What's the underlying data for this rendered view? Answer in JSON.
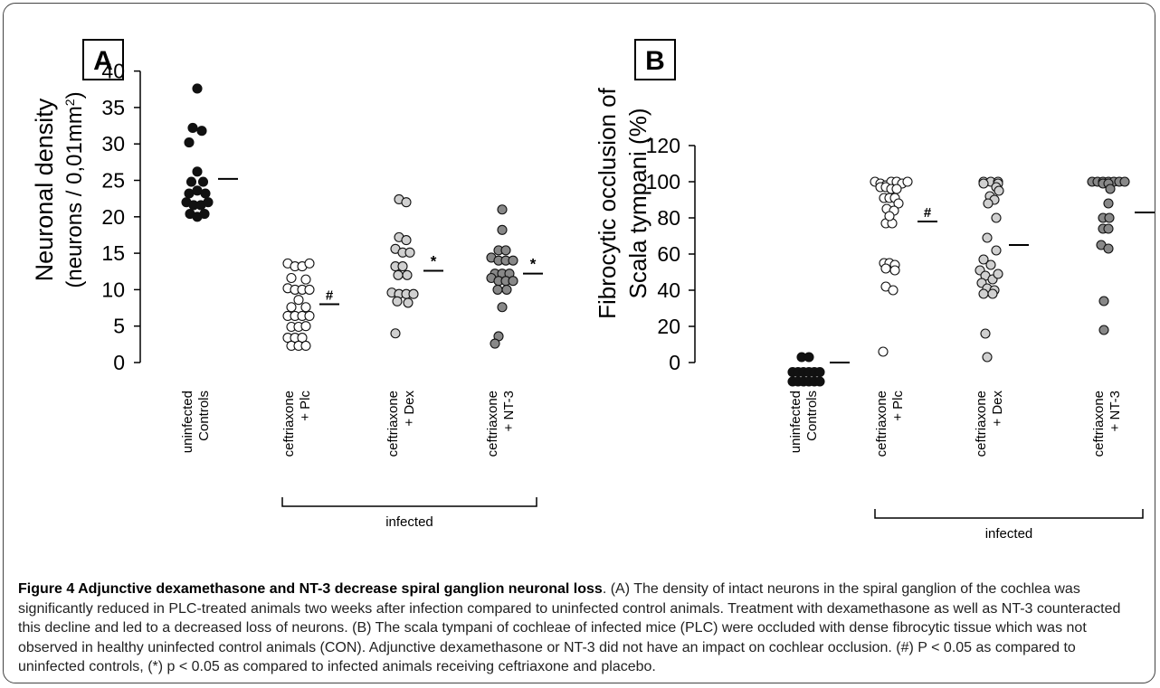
{
  "chart_data": [
    {
      "type": "scatter",
      "panel_label": "A",
      "ylabel_line1": "Neuronal density",
      "ylabel_line2_prefix": "(neurons / 0,01mm",
      "ylabel_line2_sup": "2",
      "ylabel_line2_suffix": ")",
      "ylim": [
        0,
        40
      ],
      "yticks": [
        0,
        5,
        10,
        15,
        20,
        25,
        30,
        35,
        40
      ],
      "categories": [
        {
          "line1": "uninfected",
          "line2": "Controls"
        },
        {
          "line1": "ceftriaxone",
          "line2": "+ Plc"
        },
        {
          "line1": "ceftriaxone",
          "line2": "+ Dex"
        },
        {
          "line1": "ceftriaxone",
          "line2": "+ NT-3"
        }
      ],
      "group_label": "infected",
      "group_span": [
        1,
        3
      ],
      "series": [
        {
          "category": 0,
          "fill": "#111111",
          "mean": 25.2,
          "mark": "",
          "points": [
            [
              0,
              37.6
            ],
            [
              -1,
              32.2
            ],
            [
              1,
              31.8
            ],
            [
              -1.8,
              30.2
            ],
            [
              0,
              26.2
            ],
            [
              -1.3,
              24.8
            ],
            [
              1.3,
              24.8
            ],
            [
              -1.8,
              23.2
            ],
            [
              0,
              23.6
            ],
            [
              1.8,
              23.2
            ],
            [
              -2.4,
              22
            ],
            [
              -0.8,
              21.6
            ],
            [
              0.8,
              21.6
            ],
            [
              2.4,
              22
            ],
            [
              -1.6,
              20.4
            ],
            [
              0,
              20
            ],
            [
              1.6,
              20.4
            ]
          ]
        },
        {
          "category": 1,
          "fill": "#ffffff",
          "mean": 8,
          "mark": "#",
          "points": [
            [
              -2.4,
              13.6
            ],
            [
              -0.8,
              13.2
            ],
            [
              0.8,
              13.2
            ],
            [
              2.4,
              13.6
            ],
            [
              -1.6,
              11.6
            ],
            [
              1.6,
              11.4
            ],
            [
              -2.4,
              10.2
            ],
            [
              -0.8,
              10
            ],
            [
              0.8,
              10
            ],
            [
              2.4,
              10
            ],
            [
              0,
              8.6
            ],
            [
              -1.6,
              7.6
            ],
            [
              1.6,
              7.6
            ],
            [
              -2.4,
              6.4
            ],
            [
              -0.8,
              6.4
            ],
            [
              0.8,
              6.4
            ],
            [
              2.4,
              6.4
            ],
            [
              -1.6,
              4.9
            ],
            [
              0,
              4.9
            ],
            [
              1.6,
              5
            ],
            [
              -2.4,
              3.4
            ],
            [
              -0.8,
              3.4
            ],
            [
              0.8,
              3.4
            ],
            [
              -1.6,
              2.3
            ],
            [
              0,
              2.3
            ],
            [
              1.6,
              2.3
            ]
          ]
        },
        {
          "category": 2,
          "fill": "#d0d0d0",
          "mean": 12.6,
          "mark": "*",
          "points": [
            [
              -0.8,
              22.4
            ],
            [
              0.8,
              22
            ],
            [
              -0.8,
              17.2
            ],
            [
              0.8,
              16.8
            ],
            [
              -1.6,
              15.6
            ],
            [
              0,
              15.1
            ],
            [
              1.6,
              15.1
            ],
            [
              -1.6,
              13.2
            ],
            [
              0,
              13.2
            ],
            [
              -1,
              12
            ],
            [
              1,
              12
            ],
            [
              -2.4,
              9.6
            ],
            [
              -0.8,
              9.4
            ],
            [
              0.8,
              9.4
            ],
            [
              2.4,
              9.4
            ],
            [
              -1.2,
              8.4
            ],
            [
              1.2,
              8.2
            ],
            [
              -1.6,
              4
            ]
          ]
        },
        {
          "category": 3,
          "fill": "#888888",
          "mean": 12.2,
          "mark": "*",
          "points": [
            [
              0,
              21
            ],
            [
              0,
              18.2
            ],
            [
              -0.8,
              15.4
            ],
            [
              0.8,
              15.4
            ],
            [
              -2.4,
              14.4
            ],
            [
              -0.8,
              14
            ],
            [
              0.8,
              14
            ],
            [
              2.4,
              14
            ],
            [
              -1.6,
              12.2
            ],
            [
              0,
              12.2
            ],
            [
              1.6,
              12.2
            ],
            [
              -2.4,
              11.6
            ],
            [
              -0.8,
              11.2
            ],
            [
              0.8,
              11.2
            ],
            [
              2.4,
              11.2
            ],
            [
              -1,
              10
            ],
            [
              1,
              10
            ],
            [
              0,
              7.6
            ],
            [
              -0.8,
              3.6
            ],
            [
              -1.6,
              2.6
            ]
          ]
        }
      ]
    },
    {
      "type": "scatter",
      "panel_label": "B",
      "ylabel_line1": "Fibrocytic occlusion of",
      "ylabel_line2": "Scala tympani (%)",
      "ylim": [
        -14,
        120
      ],
      "yticks": [
        0,
        20,
        40,
        60,
        80,
        100,
        120
      ],
      "categories": [
        {
          "line1": "uninfected",
          "line2": "Controls"
        },
        {
          "line1": "ceftriaxone",
          "line2": "+ Plc"
        },
        {
          "line1": "ceftriaxone",
          "line2": "+ Dex"
        },
        {
          "line1": "ceftriaxone",
          "line2": "+ NT-3"
        }
      ],
      "group_label": "infected",
      "group_span": [
        1,
        3
      ],
      "series": [
        {
          "category": 0,
          "fill": "#111111",
          "mean": 0,
          "mark": "",
          "points": [
            [
              -0.8,
              3
            ],
            [
              0.8,
              3
            ],
            [
              -2.8,
              -5.3
            ],
            [
              -1.6,
              -5.3
            ],
            [
              -0.4,
              -5.3
            ],
            [
              0.8,
              -5.3
            ],
            [
              2,
              -5.3
            ],
            [
              3.2,
              -5.3
            ],
            [
              -2.8,
              -10.5
            ],
            [
              -1.6,
              -10.5
            ],
            [
              -0.4,
              -10.5
            ],
            [
              0.8,
              -10.5
            ],
            [
              2,
              -10.5
            ],
            [
              3.2,
              -10.5
            ]
          ]
        },
        {
          "category": 1,
          "fill": "#ffffff",
          "mean": 78,
          "mark": "#",
          "points": [
            [
              -3.6,
              100
            ],
            [
              -2.4,
              99
            ],
            [
              -1.2,
              98
            ],
            [
              0,
              100
            ],
            [
              1.2,
              100
            ],
            [
              2.4,
              99
            ],
            [
              3.6,
              100
            ],
            [
              -2.4,
              97
            ],
            [
              -1.2,
              97
            ],
            [
              0,
              96
            ],
            [
              1.2,
              96
            ],
            [
              -1.6,
              91
            ],
            [
              -0.4,
              91
            ],
            [
              0.8,
              91
            ],
            [
              1.6,
              88
            ],
            [
              -1,
              85
            ],
            [
              0.6,
              84
            ],
            [
              -1.2,
              77
            ],
            [
              0.2,
              77
            ],
            [
              -0.4,
              81
            ],
            [
              -1.6,
              55
            ],
            [
              -0.4,
              55
            ],
            [
              0.8,
              54
            ],
            [
              -1.2,
              52
            ],
            [
              0.8,
              51
            ],
            [
              -1.2,
              42
            ],
            [
              0.4,
              40
            ],
            [
              -1.8,
              6
            ]
          ]
        },
        {
          "category": 2,
          "fill": "#d0d0d0",
          "mean": 65,
          "mark": "",
          "points": [
            [
              -1.6,
              100
            ],
            [
              0,
              100
            ],
            [
              1.6,
              100
            ],
            [
              -1.6,
              99
            ],
            [
              1.6,
              99
            ],
            [
              1.2,
              97
            ],
            [
              1.8,
              95
            ],
            [
              -0.2,
              92
            ],
            [
              0.8,
              90
            ],
            [
              -0.6,
              88
            ],
            [
              1.2,
              80
            ],
            [
              -0.8,
              69
            ],
            [
              1.2,
              62
            ],
            [
              -1.6,
              57
            ],
            [
              0,
              54
            ],
            [
              -2.4,
              51
            ],
            [
              -1.2,
              48
            ],
            [
              0.4,
              46
            ],
            [
              1.6,
              49
            ],
            [
              -2,
              44
            ],
            [
              -0.8,
              41
            ],
            [
              0.8,
              40
            ],
            [
              -1.6,
              38
            ],
            [
              0.4,
              38
            ],
            [
              -1.2,
              16
            ],
            [
              -0.8,
              3
            ]
          ]
        },
        {
          "category": 3,
          "fill": "#888888",
          "mean": 83,
          "mark": "",
          "points": [
            [
              -3.6,
              100
            ],
            [
              -2.4,
              100
            ],
            [
              -1.2,
              100
            ],
            [
              0,
              100
            ],
            [
              1.2,
              100
            ],
            [
              2.4,
              100
            ],
            [
              3.6,
              100
            ],
            [
              -1.2,
              99
            ],
            [
              0,
              99
            ],
            [
              0.4,
              96
            ],
            [
              0,
              88
            ],
            [
              -1.2,
              80
            ],
            [
              0.2,
              80
            ],
            [
              -1.2,
              74
            ],
            [
              0,
              74
            ],
            [
              -1.6,
              65
            ],
            [
              0,
              63
            ],
            [
              -1,
              34
            ],
            [
              -1,
              18
            ]
          ]
        }
      ]
    }
  ],
  "caption": {
    "title": "Figure 4 Adjunctive dexamethasone and NT-3 decrease spiral ganglion neuronal loss",
    "body": ". (A) The density of intact neurons in the spiral ganglion of the cochlea was significantly reduced in PLC-treated animals two weeks after infection compared to uninfected control animals. Treatment with dexamethasone as well as NT-3 counteracted this decline and led to a decreased loss of neurons. (B) The scala tympani of cochleae of infected mice (PLC) were occluded with dense fibrocytic tissue which was not observed in healthy uninfected control animals (CON). Adjunctive dexamethasone or NT-3 did not have an impact on cochlear occlusion. (#) P < 0.05 as compared to uninfected controls, (*) p < 0.05 as compared to infected animals receiving ceftriaxone and placebo."
  }
}
